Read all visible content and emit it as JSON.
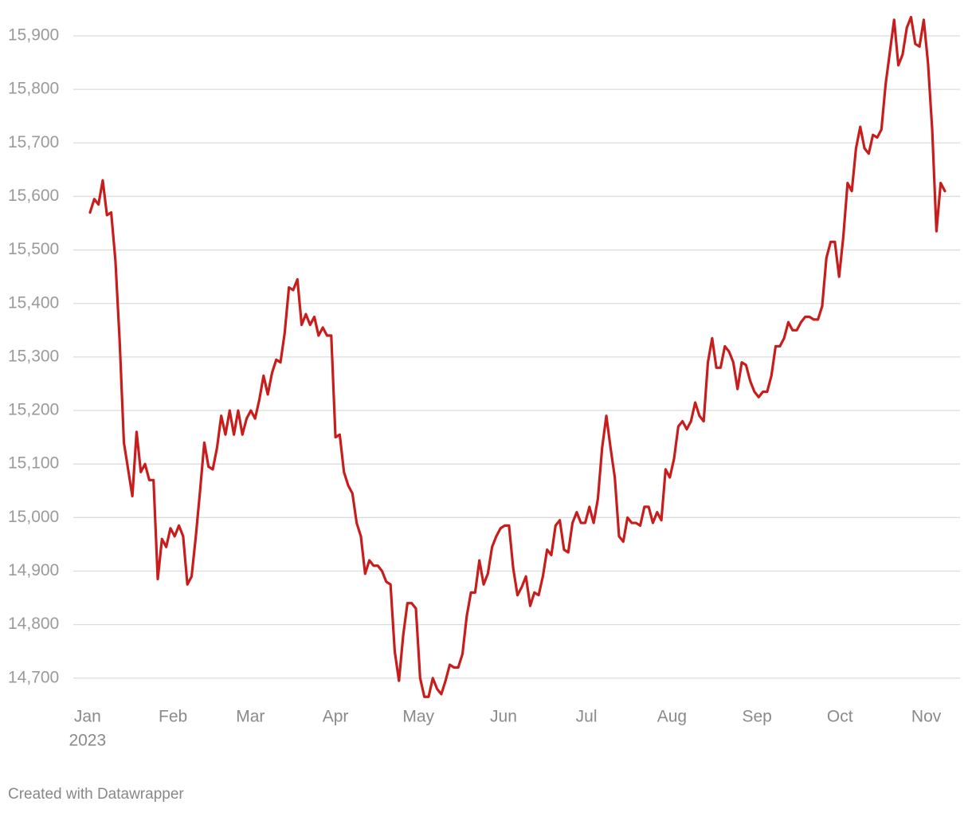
{
  "chart_data": {
    "type": "line",
    "values": [
      15570,
      15595,
      15585,
      15630,
      15565,
      15570,
      15480,
      15330,
      15140,
      15090,
      15040,
      15160,
      15085,
      15100,
      15070,
      15070,
      14885,
      14960,
      14945,
      14980,
      14965,
      14985,
      14965,
      14875,
      14890,
      14965,
      15050,
      15140,
      15095,
      15090,
      15130,
      15190,
      15155,
      15200,
      15155,
      15200,
      15155,
      15185,
      15200,
      15185,
      15220,
      15265,
      15230,
      15270,
      15295,
      15290,
      15345,
      15430,
      15425,
      15445,
      15360,
      15380,
      15360,
      15375,
      15340,
      15355,
      15340,
      15340,
      15150,
      15155,
      15085,
      15060,
      15045,
      14990,
      14965,
      14895,
      14920,
      14910,
      14910,
      14900,
      14880,
      14875,
      14750,
      14695,
      14780,
      14840,
      14840,
      14830,
      14700,
      14665,
      14665,
      14700,
      14680,
      14670,
      14695,
      14725,
      14720,
      14720,
      14745,
      14815,
      14860,
      14860,
      14920,
      14875,
      14895,
      14945,
      14965,
      14980,
      14985,
      14985,
      14905,
      14855,
      14870,
      14890,
      14835,
      14860,
      14855,
      14890,
      14940,
      14930,
      14985,
      14995,
      14940,
      14935,
      14990,
      15010,
      14990,
      14990,
      15020,
      14990,
      15035,
      15130,
      15190,
      15130,
      15075,
      14965,
      14955,
      15000,
      14990,
      14990,
      14985,
      15020,
      15020,
      14990,
      15010,
      14995,
      15090,
      15075,
      15110,
      15170,
      15180,
      15165,
      15180,
      15215,
      15190,
      15180,
      15290,
      15335,
      15280,
      15280,
      15320,
      15310,
      15290,
      15240,
      15290,
      15285,
      15255,
      15235,
      15225,
      15235,
      15235,
      15265,
      15320,
      15320,
      15335,
      15365,
      15350,
      15350,
      15365,
      15375,
      15375,
      15370,
      15370,
      15395,
      15485,
      15515,
      15515,
      15450,
      15525,
      15625,
      15610,
      15690,
      15730,
      15690,
      15680,
      15715,
      15710,
      15725,
      15810,
      15870,
      15930,
      15845,
      15865,
      15915,
      15935,
      15885,
      15880,
      15930,
      15850,
      15725,
      15535,
      15625,
      15610
    ],
    "color": "#c71e1d",
    "xlim": [
      -1,
      203
    ],
    "xticks": [
      {
        "value": -0.6,
        "label": "Jan"
      },
      {
        "value": 19.6,
        "label": "Feb"
      },
      {
        "value": 37.9,
        "label": "Mar"
      },
      {
        "value": 58.0,
        "label": "Apr"
      },
      {
        "value": 77.6,
        "label": "May"
      },
      {
        "value": 97.7,
        "label": "Jun"
      },
      {
        "value": 117.3,
        "label": "Jul"
      },
      {
        "value": 137.5,
        "label": "Aug"
      },
      {
        "value": 157.6,
        "label": "Sep"
      },
      {
        "value": 177.2,
        "label": "Oct"
      },
      {
        "value": 197.6,
        "label": "Nov"
      }
    ],
    "xtick_sublabel": "2023",
    "ylim": [
      14655,
      15950
    ],
    "yticks": [
      {
        "value": 14700,
        "label": "14,700"
      },
      {
        "value": 14800,
        "label": "14,800"
      },
      {
        "value": 14900,
        "label": "14,900"
      },
      {
        "value": 15000,
        "label": "15,000"
      },
      {
        "value": 15100,
        "label": "15,100"
      },
      {
        "value": 15200,
        "label": "15,200"
      },
      {
        "value": 15300,
        "label": "15,300"
      },
      {
        "value": 15400,
        "label": "15,400"
      },
      {
        "value": 15500,
        "label": "15,500"
      },
      {
        "value": 15600,
        "label": "15,600"
      },
      {
        "value": 15700,
        "label": "15,700"
      },
      {
        "value": 15800,
        "label": "15,800"
      },
      {
        "value": 15900,
        "label": "15,900"
      }
    ],
    "grid": true,
    "credit": "Created with Datawrapper"
  }
}
